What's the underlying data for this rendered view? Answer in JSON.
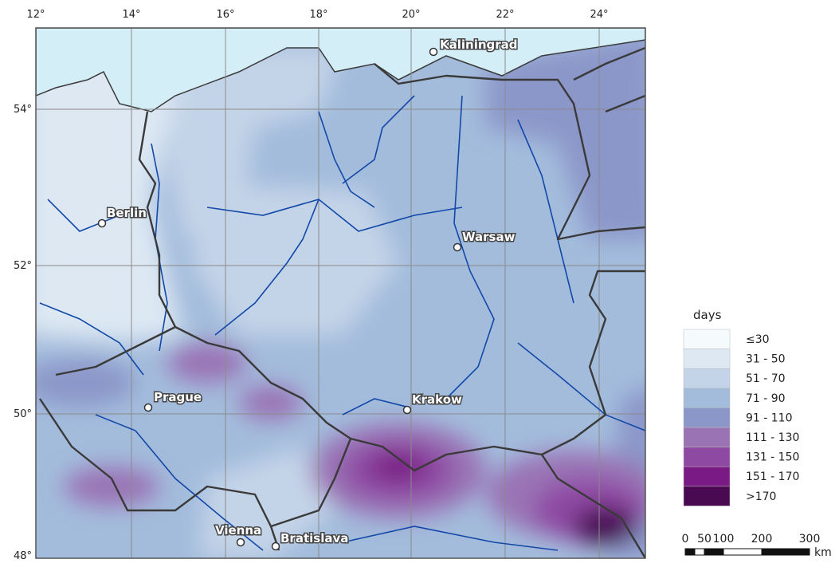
{
  "longitude_labels": [
    "12°",
    "14°",
    "16°",
    "18°",
    "20°",
    "22°",
    "24°"
  ],
  "latitude_labels": [
    "54°",
    "52°",
    "50°",
    "48°"
  ],
  "cities": [
    "Kaliningrad",
    "Berlin",
    "Warsaw",
    "Prague",
    "Krakow",
    "Vienna",
    "Bratislava"
  ],
  "legend": {
    "title": "days",
    "items": [
      {
        "label": "≤30",
        "color": "#f5fafc"
      },
      {
        "label": "31 - 50",
        "color": "#dde8f3"
      },
      {
        "label": "51 - 70",
        "color": "#c4d4e8"
      },
      {
        "label": "71 - 90",
        "color": "#a3bcdc"
      },
      {
        "label": "91 - 110",
        "color": "#8b97c9"
      },
      {
        "label": "111 - 130",
        "color": "#9a73b5"
      },
      {
        "label": "131 - 150",
        "color": "#8e4aa3"
      },
      {
        "label": "151 - 170",
        "color": "#7a1a84"
      },
      {
        "label": ">170",
        "color": "#4a0a52"
      }
    ]
  },
  "scale_bar": {
    "labels": [
      "0",
      "50",
      "100",
      "200",
      "300"
    ],
    "unit": "km"
  }
}
